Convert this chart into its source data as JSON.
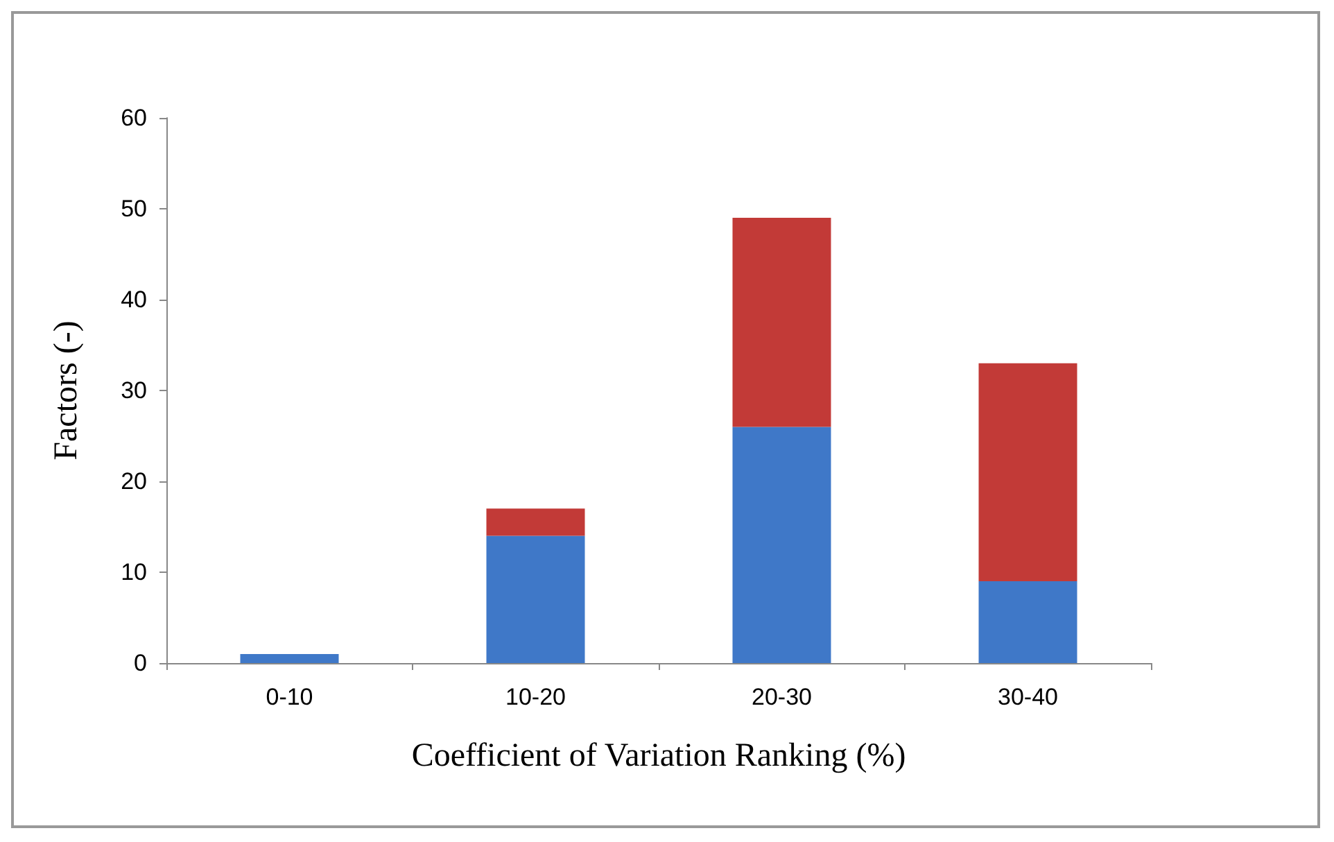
{
  "chart_data": {
    "type": "bar",
    "stacked": true,
    "xlabel": "Coefficient of Variation Ranking (%)",
    "ylabel": "Factors (-)",
    "categories": [
      "0-10",
      "10-20",
      "20-30",
      "30-40"
    ],
    "series": [
      {
        "color": "#3f78c8",
        "values": [
          1,
          14,
          26,
          9
        ]
      },
      {
        "color": "#c23a37",
        "values": [
          0,
          3,
          23,
          24
        ]
      }
    ],
    "ylim": [
      0,
      60
    ],
    "yticks": [
      0,
      10,
      20,
      30,
      40,
      50,
      60
    ],
    "grid": false
  }
}
